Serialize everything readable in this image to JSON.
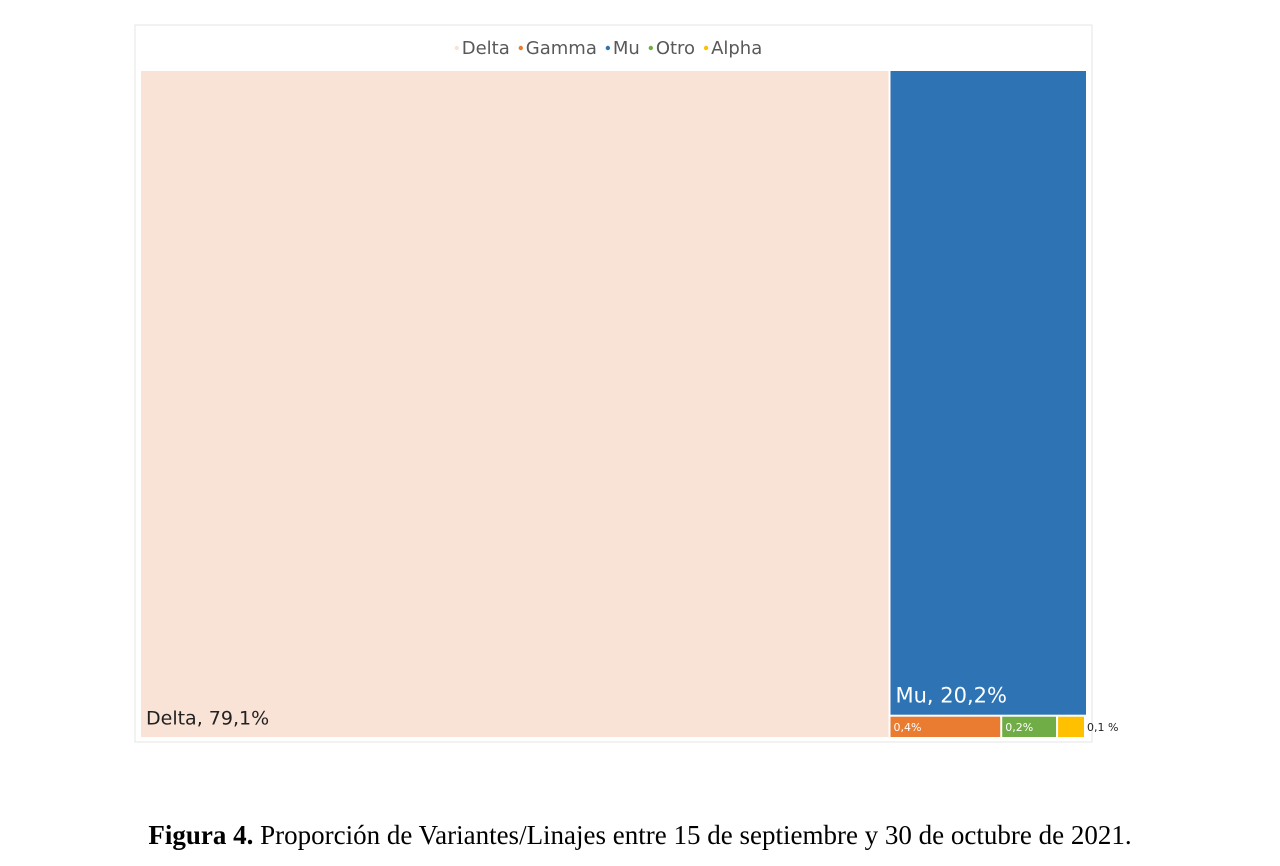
{
  "chart_data": {
    "type": "treemap",
    "categories": [
      "Delta",
      "Gamma",
      "Mu",
      "Otro",
      "Alpha"
    ],
    "values": [
      79.1,
      0.4,
      20.2,
      0.2,
      0.1
    ],
    "value_labels": [
      "Delta, 79,1%",
      "0,4%",
      "Mu, 20,2%",
      "0,2%",
      "0,1 %"
    ],
    "colors": [
      "#f9e3d6",
      "#e97c30",
      "#2e74b5",
      "#70ad47",
      "#ffc000"
    ],
    "legend": "top"
  },
  "caption": {
    "label": "Figura 4.",
    "text": "Proporción de Variantes/Linajes entre 15 de septiembre y 30 de octubre de 2021."
  }
}
